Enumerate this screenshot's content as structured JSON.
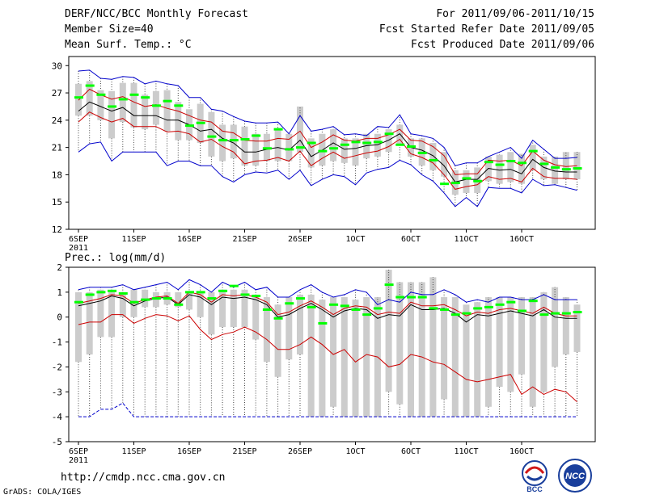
{
  "header": {
    "title": "DERF/NCC/BCC Monthly Forecast",
    "member": "Member Size=40",
    "variable": "Mean Surf. Temp.: °C",
    "period": "For 2011/09/06-2011/10/15",
    "started": "Fcst Started Refer Date 2011/09/05",
    "produced": "Fcst Produced Date 2011/09/06"
  },
  "footer": {
    "url": "http://cmdp.ncc.cma.gov.cn",
    "grads": "GrADS: COLA/IGES",
    "logo_bcc": "BCC",
    "logo_ncc": "NCC"
  },
  "colors": {
    "box": "#cccccc",
    "median": "#00ff00",
    "mean": "#000000",
    "sd": "#cc0000",
    "range": "#0000cc"
  },
  "chart_data": [
    {
      "type": "box-line",
      "title": "Mean Surf. Temp.: °C",
      "x_tick_labels": [
        "6SEP",
        "11SEP",
        "16SEP",
        "21SEP",
        "26SEP",
        "1OCT",
        "6OCT",
        "11OCT",
        "16OCT"
      ],
      "x_first_label_year": "2011",
      "ylim": [
        12,
        31
      ],
      "y_ticks": [
        12,
        15,
        18,
        21,
        24,
        27,
        30
      ],
      "series": [
        {
          "name": "mean",
          "values": [
            25.0,
            26.0,
            25.5,
            25.0,
            25.4,
            24.5,
            24.5,
            24.5,
            24.0,
            24.0,
            23.5,
            22.8,
            23.0,
            22.0,
            21.5,
            20.5,
            20.5,
            20.8,
            21.0,
            20.7,
            21.8,
            20.0,
            20.7,
            21.5,
            20.8,
            20.9,
            21.2,
            21.3,
            21.8,
            22.5,
            21.0,
            20.7,
            20.1,
            19.0,
            17.2,
            17.5,
            17.5,
            18.7,
            18.5,
            18.6,
            18.1,
            19.7,
            18.8,
            18.4,
            18.3,
            18.3
          ]
        },
        {
          "name": "mean_plus_sd",
          "values": [
            26.2,
            27.4,
            26.8,
            26.3,
            26.6,
            26.0,
            25.5,
            25.7,
            25.3,
            25.0,
            24.5,
            24.0,
            23.8,
            22.8,
            22.6,
            21.8,
            21.7,
            21.7,
            22.0,
            21.9,
            22.8,
            21.0,
            21.6,
            22.4,
            21.8,
            21.7,
            22.0,
            22.0,
            22.4,
            23.0,
            21.8,
            21.7,
            21.1,
            20.1,
            18.0,
            18.1,
            18.1,
            19.6,
            19.5,
            19.6,
            19.0,
            20.6,
            19.6,
            19.1,
            18.9,
            19.0
          ]
        },
        {
          "name": "mean_minus_sd",
          "values": [
            23.8,
            24.9,
            24.3,
            23.8,
            24.2,
            23.3,
            23.3,
            23.3,
            22.7,
            22.8,
            22.5,
            21.6,
            21.9,
            21.1,
            20.5,
            19.2,
            19.5,
            19.6,
            19.9,
            19.5,
            20.6,
            19.0,
            19.8,
            20.5,
            19.8,
            20.1,
            20.4,
            20.6,
            21.1,
            21.9,
            20.3,
            19.9,
            19.3,
            18.0,
            16.4,
            16.7,
            16.9,
            17.8,
            17.5,
            17.6,
            17.2,
            18.7,
            17.8,
            17.6,
            17.6,
            17.5
          ]
        },
        {
          "name": "max",
          "values": [
            29.4,
            29.5,
            28.6,
            28.5,
            28.8,
            28.7,
            28.0,
            28.3,
            28.0,
            27.8,
            26.5,
            26.5,
            25.2,
            25.0,
            24.4,
            23.9,
            23.7,
            23.7,
            23.8,
            22.5,
            24.5,
            22.8,
            23.0,
            23.3,
            22.4,
            22.5,
            22.3,
            23.3,
            23.2,
            24.6,
            22.5,
            22.3,
            22.0,
            21.0,
            19.0,
            19.3,
            19.3,
            20.0,
            20.5,
            21.0,
            19.8,
            21.8,
            20.8,
            19.8,
            19.8,
            19.9
          ]
        },
        {
          "name": "min",
          "values": [
            20.5,
            21.4,
            21.6,
            19.5,
            20.5,
            20.5,
            20.5,
            20.5,
            19.0,
            19.5,
            19.5,
            19.0,
            19.0,
            17.8,
            17.2,
            18.0,
            18.3,
            18.2,
            18.5,
            17.5,
            18.5,
            16.8,
            17.5,
            18.0,
            17.8,
            16.9,
            18.2,
            18.6,
            18.8,
            19.6,
            19.1,
            18.0,
            17.3,
            16.0,
            14.5,
            15.5,
            14.5,
            16.6,
            16.5,
            16.5,
            16.0,
            17.5,
            16.8,
            16.9,
            16.6,
            16.3
          ]
        },
        {
          "name": "median",
          "values": [
            26.5,
            27.8,
            26.8,
            25.5,
            26.3,
            26.8,
            26.5,
            25.6,
            26.1,
            25.6,
            23.4,
            23.7,
            22.2,
            21.8,
            21.8,
            21.9,
            22.3,
            20.9,
            23.0,
            20.8,
            21.0,
            21.5,
            20.6,
            20.9,
            21.3,
            21.6,
            21.5,
            21.6,
            22.5,
            21.3,
            21.1,
            20.4,
            19.6,
            17.0,
            17.1,
            17.6,
            17.3,
            19.4,
            19.1,
            19.5,
            19.3,
            20.6,
            19.2,
            18.8,
            18.6,
            18.7
          ]
        },
        {
          "name": "box_top",
          "values": [
            28.0,
            28.3,
            27.3,
            27.2,
            28.1,
            28.1,
            26.8,
            27.2,
            27.3,
            26.0,
            25.2,
            25.8,
            24.9,
            23.5,
            23.5,
            23.3,
            22.5,
            22.5,
            23.0,
            22.5,
            25.5,
            22.0,
            22.5,
            23.0,
            22.0,
            22.0,
            22.5,
            22.5,
            23.0,
            23.5,
            22.0,
            22.0,
            21.5,
            20.5,
            18.5,
            18.5,
            18.8,
            20.0,
            20.2,
            20.5,
            20.3,
            21.3,
            20.0,
            20.0,
            20.5,
            20.5
          ]
        },
        {
          "name": "box_bottom",
          "values": [
            24.5,
            24.5,
            24.0,
            22.0,
            23.8,
            23.2,
            23.0,
            23.5,
            22.8,
            21.8,
            21.8,
            21.5,
            20.0,
            19.5,
            19.8,
            19.0,
            19.0,
            19.5,
            19.5,
            19.5,
            20.5,
            18.8,
            19.0,
            19.5,
            19.3,
            19.0,
            19.8,
            20.0,
            20.5,
            21.3,
            20.0,
            19.0,
            18.5,
            17.8,
            15.8,
            16.0,
            16.0,
            17.3,
            17.0,
            17.2,
            17.0,
            18.5,
            17.5,
            17.0,
            17.5,
            17.5
          ]
        }
      ]
    },
    {
      "type": "box-line",
      "title": "Prec.: log(mm/d)",
      "x_tick_labels": [
        "6SEP",
        "11SEP",
        "16SEP",
        "21SEP",
        "26SEP",
        "1OCT",
        "6OCT",
        "11OCT",
        "16OCT"
      ],
      "x_first_label_year": "2011",
      "ylim": [
        -5,
        2
      ],
      "y_ticks": [
        -5,
        -4,
        -3,
        -2,
        -1,
        0,
        1,
        2
      ],
      "series": [
        {
          "name": "mean",
          "values": [
            0.45,
            0.55,
            0.65,
            0.85,
            0.75,
            0.45,
            0.65,
            0.75,
            0.8,
            0.5,
            0.9,
            0.8,
            0.5,
            0.8,
            0.75,
            0.8,
            0.7,
            0.5,
            0.0,
            0.1,
            0.35,
            0.55,
            0.3,
            0.0,
            0.25,
            0.35,
            0.3,
            -0.05,
            0.1,
            0.05,
            0.5,
            0.3,
            0.3,
            0.35,
            0.15,
            -0.2,
            0.1,
            0.05,
            0.15,
            0.25,
            0.15,
            0.05,
            0.3,
            0.0,
            -0.05,
            -0.05
          ]
        },
        {
          "name": "mean_plus_sd",
          "values": [
            0.55,
            0.65,
            0.75,
            0.9,
            0.85,
            0.55,
            0.7,
            0.8,
            0.85,
            0.55,
            1.0,
            0.9,
            0.6,
            0.9,
            0.85,
            0.9,
            0.8,
            0.6,
            0.1,
            0.2,
            0.45,
            0.65,
            0.4,
            0.1,
            0.35,
            0.45,
            0.4,
            0.1,
            0.2,
            0.15,
            0.6,
            0.45,
            0.45,
            0.5,
            0.3,
            0.05,
            0.2,
            0.15,
            0.3,
            0.35,
            0.25,
            0.15,
            0.4,
            0.15,
            0.05,
            0.05
          ]
        },
        {
          "name": "mean_minus_sd",
          "values": [
            -0.3,
            -0.2,
            -0.2,
            0.1,
            0.1,
            -0.25,
            -0.05,
            0.1,
            0.05,
            -0.15,
            0.05,
            -0.5,
            -0.9,
            -0.7,
            -0.6,
            -0.4,
            -0.6,
            -0.9,
            -1.3,
            -1.3,
            -1.1,
            -0.8,
            -1.1,
            -1.5,
            -1.3,
            -1.8,
            -1.5,
            -1.6,
            -2.0,
            -1.9,
            -1.5,
            -1.6,
            -1.8,
            -1.9,
            -2.2,
            -2.5,
            -2.6,
            -2.5,
            -2.4,
            -2.3,
            -3.1,
            -2.8,
            -3.1,
            -2.9,
            -3.0,
            -3.4
          ]
        },
        {
          "name": "max",
          "values": [
            1.1,
            1.2,
            1.2,
            1.2,
            1.3,
            1.1,
            1.2,
            1.3,
            1.4,
            1.1,
            1.5,
            1.3,
            1.0,
            1.4,
            1.2,
            1.4,
            1.1,
            1.2,
            0.8,
            0.8,
            1.1,
            1.3,
            1.0,
            0.8,
            0.9,
            1.1,
            1.0,
            0.5,
            0.7,
            0.6,
            1.0,
            0.9,
            0.9,
            1.1,
            0.9,
            0.6,
            0.7,
            0.6,
            0.8,
            0.8,
            0.7,
            0.7,
            0.9,
            0.7,
            0.7,
            0.7
          ]
        },
        {
          "name": "min",
          "values": [
            -4.0,
            -4.0,
            -3.7,
            -3.7,
            -3.45,
            -4.0,
            -4.0,
            -4.0,
            -4.0,
            -4.0,
            -4.0,
            -4.0,
            -4.0,
            -4.0,
            -4.0,
            -4.0,
            -4.0,
            -4.0,
            -4.0,
            -4.0,
            -4.0,
            -4.0,
            -4.0,
            -4.0,
            -4.0,
            -4.0,
            -4.0,
            -4.0,
            -4.0,
            -4.0,
            -4.0,
            -4.0,
            -4.0,
            -4.0,
            -4.0,
            -4.0,
            -4.0,
            -4.0,
            -4.0,
            -4.0,
            -4.0,
            -4.0,
            -4.0,
            -4.0,
            -4.0,
            -4.0
          ]
        },
        {
          "name": "median",
          "values": [
            0.6,
            0.9,
            1.0,
            1.05,
            0.95,
            0.6,
            0.7,
            0.75,
            0.75,
            0.5,
            1.0,
            1.0,
            0.75,
            1.05,
            1.25,
            0.9,
            0.85,
            0.3,
            -0.05,
            0.55,
            0.75,
            0.4,
            -0.25,
            0.5,
            0.45,
            0.3,
            0.1,
            0.35,
            1.3,
            0.8,
            0.8,
            0.8,
            0.35,
            0.3,
            0.1,
            0.15,
            0.35,
            0.4,
            0.5,
            0.6,
            0.25,
            0.65,
            0.1,
            0.15,
            0.15,
            0.2
          ]
        },
        {
          "name": "box_top",
          "values": [
            1.0,
            1.0,
            1.1,
            1.0,
            1.0,
            1.1,
            1.1,
            1.0,
            1.0,
            1.0,
            1.0,
            1.0,
            1.0,
            1.1,
            1.1,
            1.1,
            0.9,
            0.8,
            0.5,
            0.8,
            0.9,
            0.9,
            0.7,
            0.8,
            0.8,
            0.7,
            0.8,
            0.8,
            1.9,
            1.4,
            1.4,
            1.4,
            1.6,
            0.8,
            0.8,
            0.5,
            0.6,
            0.8,
            0.8,
            0.8,
            0.8,
            0.8,
            1.0,
            1.2,
            0.8,
            0.5
          ]
        },
        {
          "name": "box_bottom",
          "values": [
            -1.8,
            -1.5,
            -0.8,
            -0.8,
            0.0,
            0.0,
            0.4,
            0.4,
            0.5,
            0.4,
            0.3,
            0.0,
            -0.7,
            -0.4,
            -0.4,
            -0.4,
            -0.9,
            -1.8,
            -2.4,
            -1.7,
            -1.5,
            -4.0,
            -4.0,
            -3.6,
            -4.0,
            -4.0,
            -4.0,
            -4.0,
            -3.0,
            -3.5,
            -4.0,
            -4.0,
            -4.0,
            -3.3,
            -4.0,
            -4.0,
            -4.0,
            -3.6,
            -2.8,
            -3.0,
            -2.3,
            -3.6,
            -3.0,
            -2.0,
            -1.5,
            -1.4
          ]
        }
      ]
    }
  ]
}
